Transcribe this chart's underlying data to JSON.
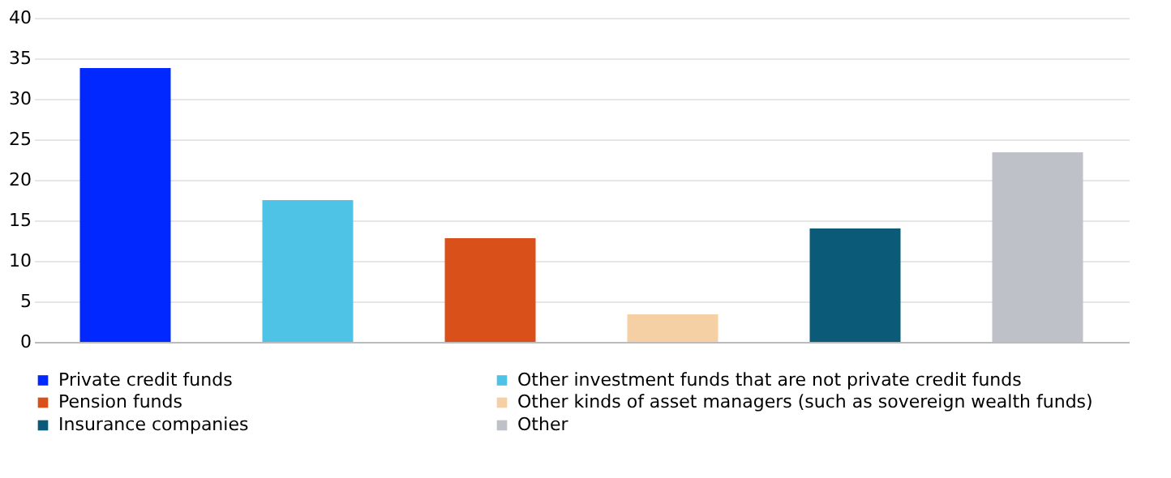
{
  "chart_data": {
    "type": "bar",
    "categories": [
      null,
      null,
      null,
      null,
      null,
      null
    ],
    "series": [
      {
        "name": "Private credit funds",
        "color": "#0028ff",
        "values": [
          33.8,
          null,
          null,
          null,
          null,
          null
        ]
      },
      {
        "name": "Other investment funds that are not private credit funds",
        "color": "#4fc3e5",
        "values": [
          null,
          17.5,
          null,
          null,
          null,
          null
        ]
      },
      {
        "name": "Pension funds",
        "color": "#d9501a",
        "values": [
          null,
          null,
          12.8,
          null,
          null,
          null
        ]
      },
      {
        "name": "Other kinds of asset managers (such as sovereign wealth funds)",
        "color": "#f4d0a4",
        "values": [
          null,
          null,
          null,
          3.4,
          null,
          null
        ]
      },
      {
        "name": "Insurance companies",
        "color": "#0a5a78",
        "values": [
          null,
          null,
          null,
          null,
          14.0,
          null
        ]
      },
      {
        "name": "Other",
        "color": "#bfc1c8",
        "values": [
          null,
          null,
          null,
          null,
          null,
          23.4
        ]
      }
    ],
    "ylim": [
      0,
      40
    ],
    "yticks": [
      0,
      5,
      10,
      15,
      20,
      25,
      30,
      35,
      40
    ],
    "grid": "y",
    "legend": "bottom",
    "tick_labels": "y"
  }
}
